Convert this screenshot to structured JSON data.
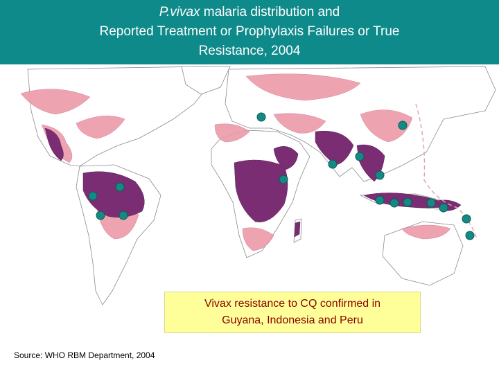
{
  "title": {
    "line1_italic": "P.vivax",
    "line1_rest": " malaria distribution and",
    "line2": "Reported Treatment or Prophylaxis Failures or True",
    "line3": "Resistance, 2004"
  },
  "callout": {
    "line1": "Vivax resistance to CQ confirmed in",
    "line2": "Guyana, Indonesia and Peru"
  },
  "source": "Source: WHO RBM Department, 2004",
  "colors": {
    "header_bg": "#0f8a8a",
    "high_risk": "#7b2d73",
    "low_risk": "#ec9aa8",
    "marker": "#138a84",
    "callout_bg": "#ffff99",
    "callout_text": "#8b0000"
  },
  "markers_count": 17,
  "icons": {
    "marker": "teal-circle-marker"
  }
}
